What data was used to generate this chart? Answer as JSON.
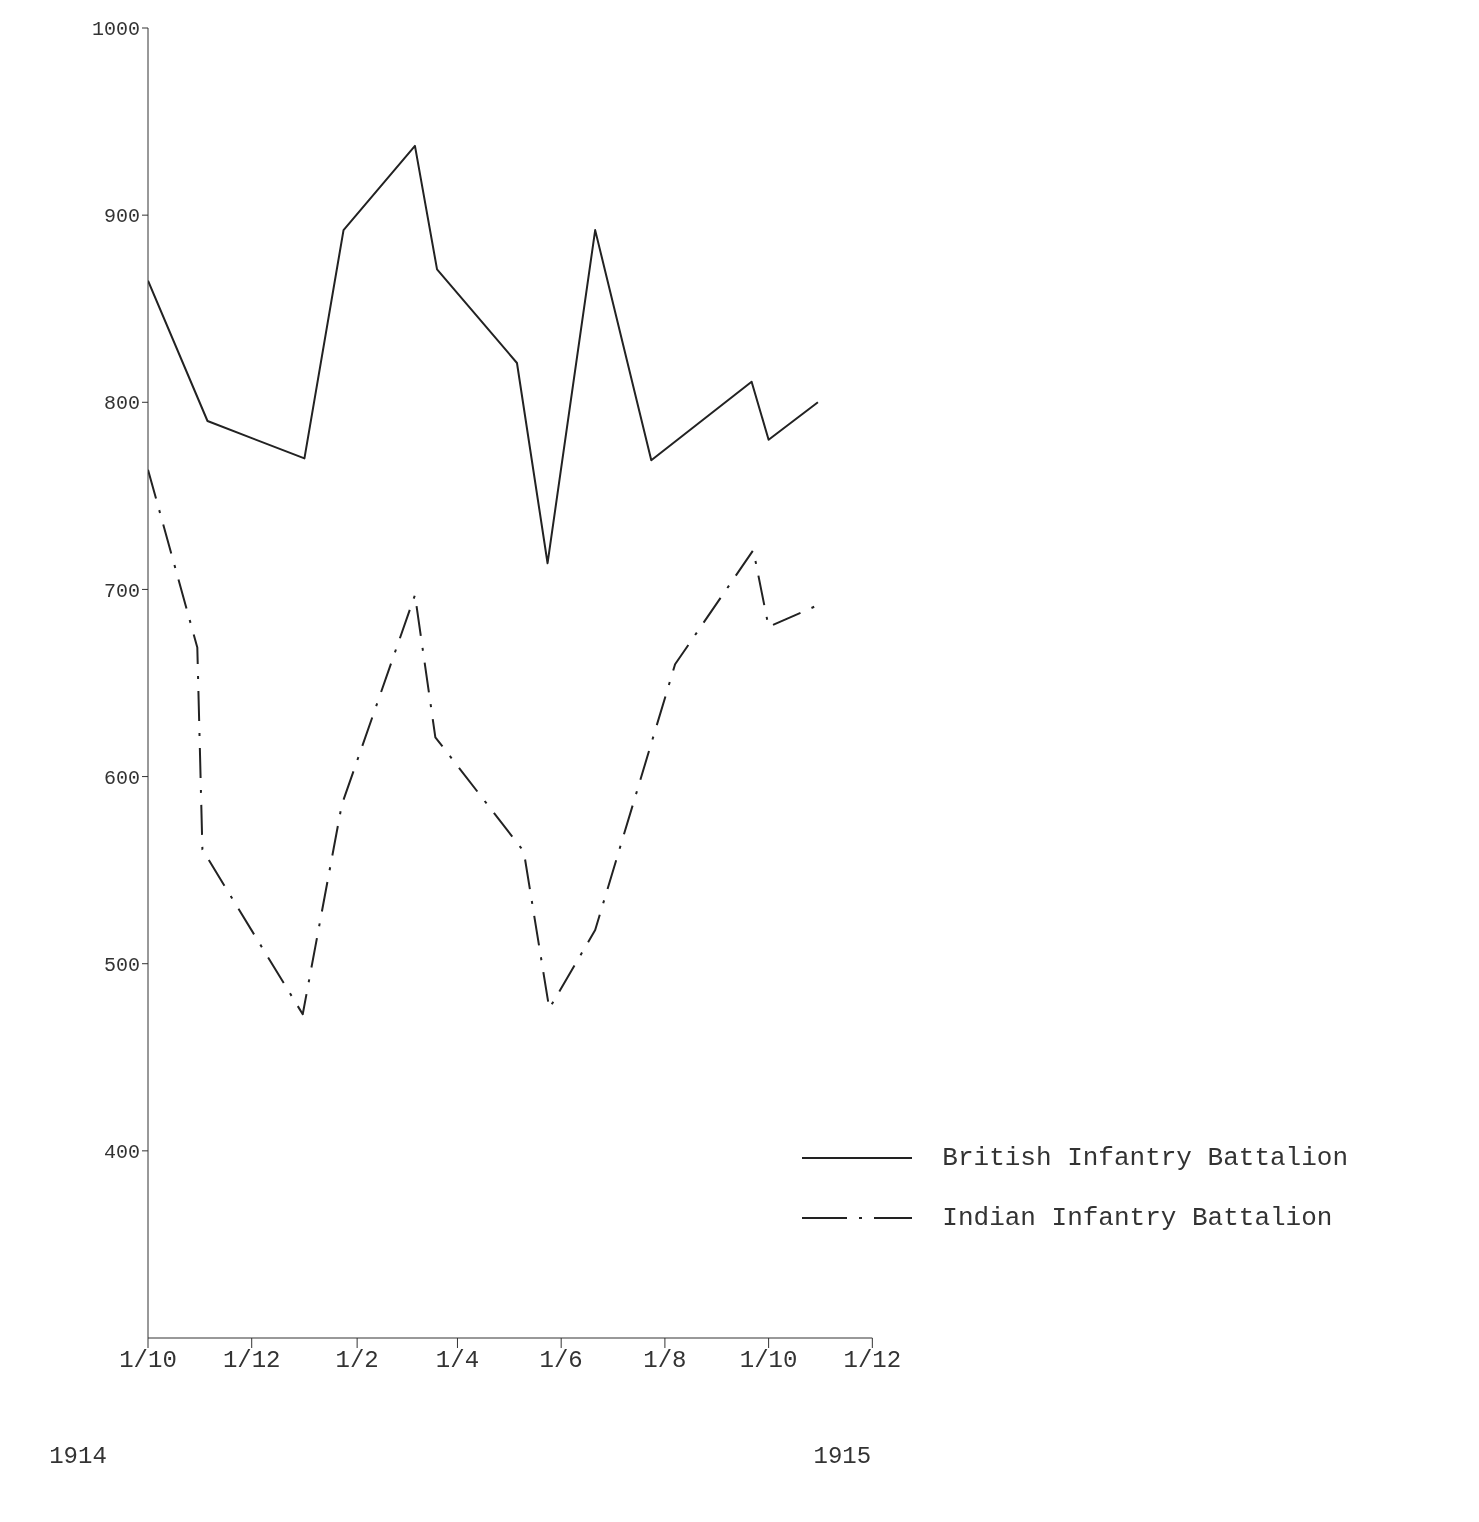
{
  "chart_data": {
    "type": "line",
    "x": [
      "1914-10-01",
      "1914-11-05",
      "1915-01-01",
      "1915-01-24",
      "1915-03-07",
      "1915-03-20",
      "1915-05-06",
      "1915-05-24",
      "1915-06-21",
      "1915-07-24",
      "1915-09-21",
      "1915-10-01",
      "1915-10-30"
    ],
    "series": [
      {
        "name": "British Infantry Battalion",
        "color": "#222222",
        "line_style": "solid",
        "values": [
          865,
          790,
          770,
          892,
          937,
          871,
          821,
          714,
          892,
          769,
          811,
          780,
          800
        ]
      },
      {
        "name": "Indian Infantry Battalion",
        "color": "#222222",
        "line_style": "dashed",
        "x": [
          "1914-10-01",
          "1914-10-30",
          "1914-11-02",
          "1914-12-31",
          "1915-01-23",
          "1915-03-07",
          "1915-03-19",
          "1915-05-10",
          "1915-05-25",
          "1915-06-21",
          "1915-08-07",
          "1915-09-22",
          "1915-10-01",
          "1915-10-31"
        ],
        "values": [
          764,
          669,
          561,
          473,
          585,
          697,
          621,
          560,
          476,
          518,
          660,
          721,
          680,
          692
        ]
      }
    ],
    "xlim": [
      "1914-10-01",
      "1915-12-01"
    ],
    "xticks": [
      {
        "value": "1914-10-01",
        "label": "1/10"
      },
      {
        "value": "1914-12-01",
        "label": "1/12"
      },
      {
        "value": "1915-02-01",
        "label": "1/2"
      },
      {
        "value": "1915-04-01",
        "label": "1/4"
      },
      {
        "value": "1915-06-01",
        "label": "1/6"
      },
      {
        "value": "1915-08-01",
        "label": "1/8"
      },
      {
        "value": "1915-10-01",
        "label": "1/10"
      },
      {
        "value": "1915-12-01",
        "label": "1/12"
      }
    ],
    "ylim": [
      300,
      1000
    ],
    "yticks": [
      400,
      500,
      600,
      700,
      800,
      900,
      1000
    ],
    "annotations": [
      "1914",
      "1915"
    ],
    "legend": "bottom right",
    "grid": false,
    "marker": "none"
  }
}
